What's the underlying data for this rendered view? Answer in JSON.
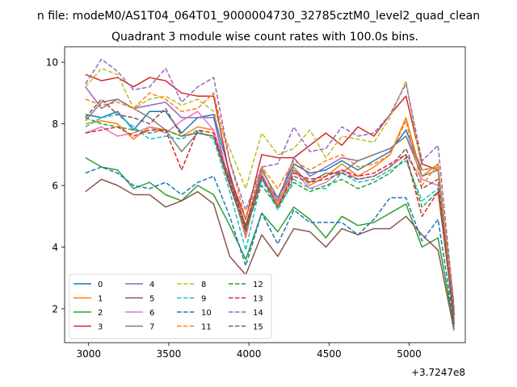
{
  "chart_data": {
    "type": "line",
    "suptitle": "n file: modeM0/AS1T04_064T01_9000004730_32785cztM0_level2_quad_clean",
    "title": "Quadrant 3 module wise count rates with 100.0s bins.",
    "xlabel": "",
    "ylabel": "",
    "x_offset_label": "+3.7247e8",
    "x_offset": 372470000,
    "xlim": [
      2850,
      5350
    ],
    "ylim": [
      0.9,
      10.5
    ],
    "xticks": [
      3000,
      3500,
      4000,
      4500,
      5000
    ],
    "yticks": [
      2,
      4,
      6,
      8,
      10
    ],
    "grid": false,
    "legend": {
      "placement": "lower-left",
      "columns": 4
    },
    "x": [
      2980,
      3080,
      3180,
      3280,
      3380,
      3480,
      3580,
      3680,
      3780,
      3880,
      3980,
      4080,
      4180,
      4280,
      4380,
      4480,
      4580,
      4680,
      4780,
      4880,
      4980,
      5080,
      5180,
      5280
    ],
    "series": [
      {
        "name": "0",
        "color": "#1f77b4",
        "style": "solid",
        "values": [
          8.3,
          8.2,
          8.4,
          7.8,
          8.4,
          8.4,
          7.7,
          8.2,
          8.3,
          6.4,
          4.6,
          6.2,
          5.6,
          6.7,
          6.4,
          6.5,
          6.8,
          6.5,
          6.8,
          7.1,
          7.8,
          6.5,
          6.6,
          1.5
        ]
      },
      {
        "name": "1",
        "color": "#ff7f0e",
        "style": "solid",
        "values": [
          8.0,
          8.1,
          8.0,
          7.5,
          7.9,
          7.8,
          7.6,
          7.9,
          7.8,
          6.2,
          4.3,
          6.6,
          5.4,
          6.6,
          6.0,
          6.3,
          6.7,
          6.3,
          6.6,
          7.0,
          8.2,
          6.3,
          6.7,
          1.6
        ]
      },
      {
        "name": "2",
        "color": "#2ca02c",
        "style": "solid",
        "values": [
          6.9,
          6.6,
          6.5,
          5.9,
          6.1,
          5.7,
          5.5,
          6.0,
          5.7,
          4.7,
          3.6,
          5.1,
          4.5,
          5.3,
          4.9,
          4.3,
          5.0,
          4.7,
          4.8,
          5.1,
          5.4,
          4.0,
          4.3,
          1.4
        ]
      },
      {
        "name": "3",
        "color": "#d62728",
        "style": "solid",
        "values": [
          9.6,
          9.4,
          9.5,
          9.2,
          9.5,
          9.4,
          9.0,
          8.9,
          8.9,
          6.3,
          4.9,
          7.0,
          6.9,
          6.9,
          7.3,
          7.7,
          7.3,
          7.9,
          7.6,
          8.3,
          8.9,
          6.7,
          6.5,
          1.9
        ]
      },
      {
        "name": "4",
        "color": "#9467bd",
        "style": "solid",
        "values": [
          9.2,
          8.5,
          8.8,
          8.5,
          8.6,
          8.7,
          8.2,
          8.2,
          8.2,
          6.0,
          4.5,
          6.2,
          5.5,
          6.9,
          6.3,
          6.6,
          6.9,
          6.8,
          7.0,
          7.2,
          7.6,
          6.5,
          6.6,
          1.8
        ]
      },
      {
        "name": "5",
        "color": "#8c564b",
        "style": "solid",
        "values": [
          5.8,
          6.2,
          6.0,
          5.7,
          5.7,
          5.3,
          5.5,
          5.8,
          5.4,
          3.7,
          3.1,
          4.4,
          3.7,
          4.6,
          4.5,
          4.0,
          4.6,
          4.4,
          4.6,
          4.6,
          5.0,
          4.4,
          3.9,
          1.3
        ]
      },
      {
        "name": "6",
        "color": "#e377c2",
        "style": "solid",
        "values": [
          7.7,
          7.9,
          7.6,
          7.7,
          7.9,
          7.7,
          8.1,
          8.4,
          7.8,
          6.2,
          4.4,
          6.4,
          5.3,
          6.5,
          5.9,
          6.1,
          6.5,
          6.2,
          6.3,
          6.6,
          7.0,
          6.2,
          6.0,
          1.7
        ]
      },
      {
        "name": "7",
        "color": "#7f7f7f",
        "style": "solid",
        "values": [
          8.1,
          8.7,
          8.8,
          8.5,
          8.2,
          7.8,
          7.1,
          7.7,
          7.6,
          6.2,
          4.7,
          6.5,
          5.6,
          6.5,
          6.1,
          6.4,
          6.4,
          6.8,
          7.0,
          7.2,
          7.6,
          6.3,
          6.5,
          1.6
        ]
      },
      {
        "name": "8",
        "color": "#bcbd22",
        "style": "dashed",
        "values": [
          9.2,
          9.8,
          9.6,
          8.5,
          8.8,
          8.9,
          8.6,
          8.8,
          8.4,
          7.2,
          5.9,
          7.7,
          7.0,
          7.2,
          7.8,
          6.9,
          7.6,
          7.5,
          7.4,
          8.2,
          9.4,
          6.5,
          6.6,
          2.2
        ]
      },
      {
        "name": "9",
        "color": "#17becf",
        "style": "dashed",
        "values": [
          7.9,
          8.2,
          8.3,
          7.9,
          7.5,
          7.6,
          7.5,
          7.8,
          7.5,
          5.8,
          3.9,
          6.2,
          5.2,
          6.2,
          5.9,
          5.9,
          6.4,
          6.1,
          6.2,
          6.5,
          6.8,
          5.5,
          5.9,
          1.6
        ]
      },
      {
        "name": "10",
        "color": "#1f77b4",
        "style": "dashed",
        "values": [
          6.4,
          6.6,
          6.4,
          6.0,
          5.9,
          6.1,
          5.7,
          6.1,
          6.3,
          5.0,
          3.4,
          5.1,
          4.1,
          5.2,
          4.8,
          4.8,
          4.8,
          4.4,
          4.9,
          5.6,
          5.6,
          4.2,
          4.9,
          1.5
        ]
      },
      {
        "name": "11",
        "color": "#ff7f0e",
        "style": "dashed",
        "values": [
          8.8,
          8.6,
          8.7,
          8.5,
          9.0,
          8.8,
          8.4,
          8.5,
          9.0,
          6.8,
          4.9,
          6.6,
          5.9,
          6.8,
          6.5,
          6.8,
          7.0,
          6.6,
          6.7,
          7.0,
          8.1,
          6.0,
          6.7,
          1.8
        ]
      },
      {
        "name": "12",
        "color": "#2ca02c",
        "style": "dashed",
        "values": [
          8.2,
          8.0,
          7.9,
          7.8,
          7.7,
          7.8,
          7.6,
          7.7,
          7.6,
          6.0,
          4.6,
          6.0,
          5.3,
          6.1,
          5.8,
          6.0,
          6.2,
          5.9,
          6.1,
          6.4,
          6.9,
          5.3,
          5.8,
          1.7
        ]
      },
      {
        "name": "13",
        "color": "#d62728",
        "style": "dashed",
        "values": [
          7.7,
          7.8,
          7.9,
          7.6,
          7.8,
          7.8,
          6.5,
          7.8,
          7.7,
          6.1,
          4.7,
          6.3,
          5.3,
          6.4,
          6.2,
          6.3,
          6.5,
          6.3,
          6.4,
          6.7,
          7.0,
          5.0,
          5.8,
          1.8
        ]
      },
      {
        "name": "14",
        "color": "#9467bd",
        "style": "dashed",
        "values": [
          9.3,
          10.1,
          9.7,
          9.1,
          9.2,
          9.8,
          8.7,
          9.2,
          9.5,
          6.8,
          5.2,
          6.6,
          6.7,
          7.9,
          7.1,
          7.2,
          7.9,
          7.6,
          7.7,
          8.3,
          9.3,
          6.8,
          7.3,
          2.0
        ]
      },
      {
        "name": "15",
        "color": "#8c564b",
        "style": "dashed",
        "values": [
          8.2,
          8.8,
          8.3,
          8.2,
          8.0,
          8.5,
          7.6,
          7.7,
          7.6,
          6.0,
          4.5,
          6.3,
          5.3,
          6.3,
          6.1,
          6.2,
          6.4,
          6.2,
          6.3,
          6.6,
          7.2,
          5.9,
          6.2,
          1.5
        ]
      }
    ]
  }
}
